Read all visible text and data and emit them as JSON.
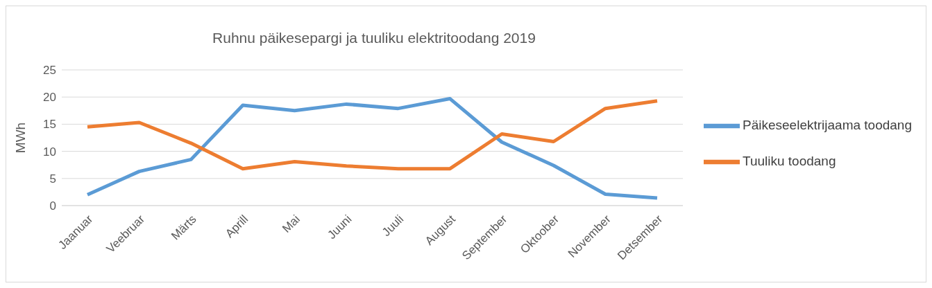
{
  "chart_data": {
    "type": "line",
    "title": "Ruhnu päikesepargi ja tuuliku elektritoodang 2019",
    "ylabel": "MWh",
    "categories": [
      "Jaanuar",
      "Veebruar",
      "Märts",
      "Aprill",
      "Mai",
      "Juuni",
      "Juuli",
      "August",
      "September",
      "Oktoober",
      "November",
      "Detsember"
    ],
    "series": [
      {
        "name": "Päikeseelektrijaama toodang",
        "color": "#5b9bd5",
        "values": [
          2.0,
          6.3,
          8.5,
          18.5,
          17.5,
          18.7,
          17.9,
          19.7,
          11.7,
          7.4,
          2.1,
          1.4
        ]
      },
      {
        "name": "Tuuliku toodang",
        "color": "#ed7d31",
        "values": [
          14.5,
          15.3,
          11.5,
          6.8,
          8.1,
          7.3,
          6.8,
          6.8,
          13.2,
          11.8,
          17.9,
          19.3
        ]
      }
    ],
    "ylim": [
      0,
      25
    ],
    "yticks": [
      0,
      5,
      10,
      15,
      20,
      25
    ],
    "grid": "y",
    "legend": "right",
    "marker": "none",
    "line_style": "solid"
  }
}
